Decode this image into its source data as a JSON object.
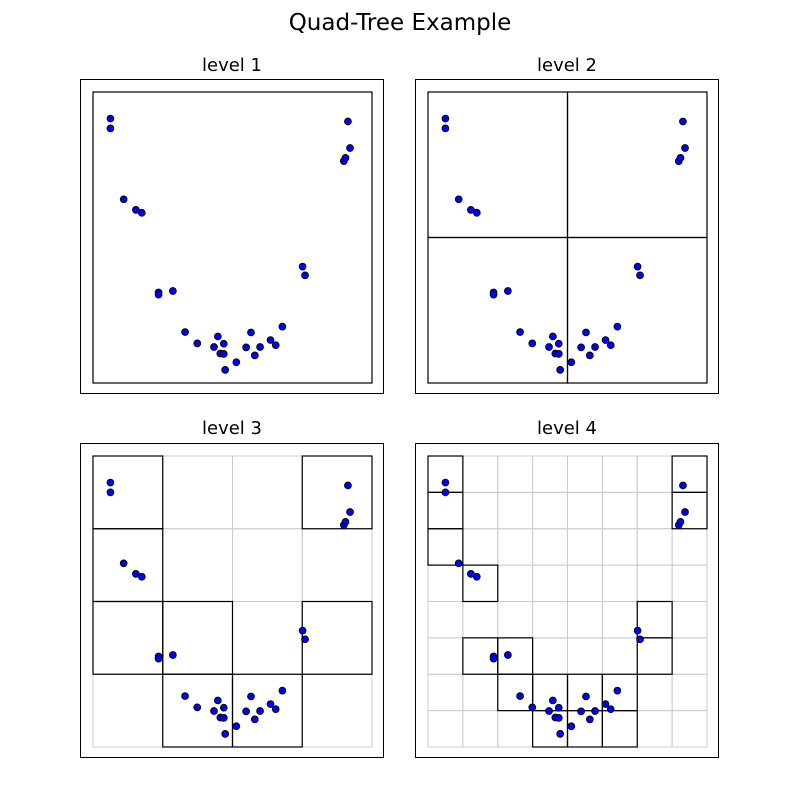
{
  "title": "Quad-Tree Example",
  "colors": {
    "point_fill": "#0000ff",
    "point_edge": "#000000",
    "grid": "#cccccc",
    "cell": "#000000"
  },
  "chart_data": [
    {
      "type": "scatter",
      "title": "level 1",
      "grid": false,
      "xlim": [
        0,
        8
      ],
      "ylim": [
        0,
        8
      ],
      "cells": [
        [
          0,
          0,
          8
        ]
      ]
    },
    {
      "type": "scatter",
      "title": "level 2",
      "grid": false,
      "xlim": [
        0,
        8
      ],
      "ylim": [
        0,
        8
      ],
      "cells": [
        [
          0,
          0,
          4
        ],
        [
          4,
          0,
          4
        ],
        [
          0,
          4,
          4
        ],
        [
          4,
          4,
          4
        ]
      ]
    },
    {
      "type": "scatter",
      "title": "level 3",
      "grid": true,
      "grid_step": 2,
      "xlim": [
        0,
        8
      ],
      "ylim": [
        0,
        8
      ],
      "cells": [
        [
          0,
          6,
          2
        ],
        [
          6,
          6,
          2
        ],
        [
          0,
          4,
          2
        ],
        [
          0,
          2,
          2
        ],
        [
          2,
          2,
          2
        ],
        [
          6,
          2,
          2
        ],
        [
          2,
          0,
          2
        ],
        [
          4,
          0,
          2
        ]
      ]
    },
    {
      "type": "scatter",
      "title": "level 4",
      "grid": true,
      "grid_step": 1,
      "xlim": [
        0,
        8
      ],
      "ylim": [
        0,
        8
      ],
      "cells": [
        [
          0,
          7,
          1
        ],
        [
          7,
          7,
          1
        ],
        [
          0,
          6,
          1
        ],
        [
          7,
          6,
          1
        ],
        [
          0,
          5,
          1
        ],
        [
          1,
          4,
          1
        ],
        [
          6,
          3,
          1
        ],
        [
          1,
          2,
          1
        ],
        [
          2,
          2,
          1
        ],
        [
          6,
          2,
          1
        ],
        [
          2,
          1,
          1
        ],
        [
          3,
          1,
          1
        ],
        [
          4,
          1,
          1
        ],
        [
          5,
          1,
          1
        ],
        [
          3,
          0,
          1
        ],
        [
          4,
          0,
          1
        ],
        [
          5,
          0,
          1
        ]
      ]
    }
  ],
  "points": {
    "x": [
      0.5,
      0.5,
      0.88,
      1.23,
      1.4,
      1.88,
      1.88,
      2.29,
      2.64,
      2.99,
      3.47,
      3.58,
      3.75,
      3.65,
      3.75,
      3.79,
      4.11,
      4.39,
      4.53,
      4.64,
      4.79,
      5.09,
      5.24,
      5.43,
      6.01,
      6.08,
      7.19,
      7.24,
      7.37,
      7.31
    ],
    "y": [
      7.27,
      7.0,
      5.05,
      4.76,
      4.68,
      2.49,
      2.43,
      2.53,
      1.4,
      1.09,
      0.99,
      1.28,
      1.08,
      0.81,
      0.8,
      0.36,
      0.57,
      0.98,
      1.39,
      0.76,
      0.99,
      1.18,
      1.04,
      1.55,
      3.2,
      2.96,
      6.1,
      6.19,
      6.46,
      7.19
    ]
  }
}
